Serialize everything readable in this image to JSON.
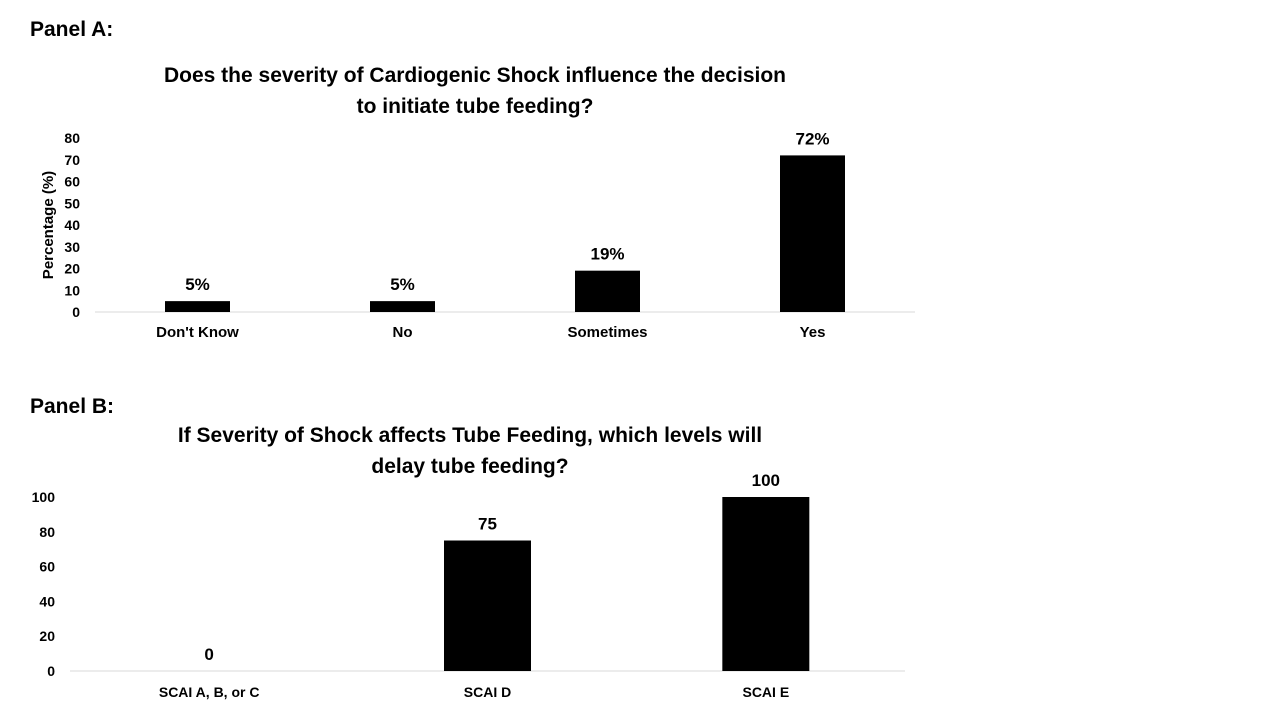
{
  "panels": [
    {
      "label": "Panel A:"
    },
    {
      "label": "Panel B:"
    }
  ],
  "colors": {
    "bar": "#000000",
    "axis": "#d9d9d9",
    "background": "#ffffff"
  },
  "chart_data": [
    {
      "type": "bar",
      "title_line1": "Does the severity of Cardiogenic Shock influence the decision",
      "title_line2": "to initiate tube feeding?",
      "xlabel": "",
      "ylabel": "Percentage (%)",
      "ylim": [
        0,
        80
      ],
      "yticks": [
        0,
        10,
        20,
        30,
        40,
        50,
        60,
        70,
        80
      ],
      "categories": [
        "Don't Know",
        "No",
        "Sometimes",
        "Yes"
      ],
      "values": [
        5,
        5,
        19,
        72
      ],
      "data_labels": [
        "5%",
        "5%",
        "19%",
        "72%"
      ],
      "grid": false,
      "legend": "none"
    },
    {
      "type": "bar",
      "title_line1": "If Severity of Shock affects Tube Feeding, which levels will",
      "title_line2": "delay tube feeding?",
      "xlabel": "",
      "ylabel": "",
      "ylim": [
        0,
        100
      ],
      "yticks": [
        0,
        20,
        40,
        60,
        80,
        100
      ],
      "categories": [
        "SCAI A, B, or C",
        "SCAI D",
        "SCAI E"
      ],
      "values": [
        0,
        75,
        100
      ],
      "data_labels": [
        "0",
        "75",
        "100"
      ],
      "grid": false,
      "legend": "none"
    }
  ]
}
